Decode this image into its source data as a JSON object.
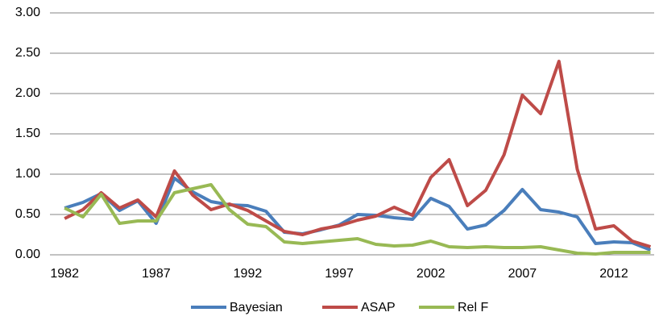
{
  "chart_data": {
    "type": "line",
    "x": [
      1982,
      1983,
      1984,
      1985,
      1986,
      1987,
      1988,
      1989,
      1990,
      1991,
      1992,
      1993,
      1994,
      1995,
      1996,
      1997,
      1998,
      1999,
      2000,
      2001,
      2002,
      2003,
      2004,
      2005,
      2006,
      2007,
      2008,
      2009,
      2010,
      2011,
      2012,
      2013,
      2014
    ],
    "series": [
      {
        "name": "Bayesian",
        "color": "#4a7ebb",
        "values": [
          0.58,
          0.65,
          0.76,
          0.55,
          0.67,
          0.39,
          0.95,
          0.78,
          0.66,
          0.62,
          0.61,
          0.54,
          0.28,
          0.26,
          0.31,
          0.37,
          0.5,
          0.49,
          0.46,
          0.44,
          0.7,
          0.6,
          0.32,
          0.37,
          0.55,
          0.81,
          0.56,
          0.53,
          0.47,
          0.14,
          0.16,
          0.15,
          0.06
        ]
      },
      {
        "name": "ASAP",
        "color": "#be4b48",
        "values": [
          0.45,
          0.56,
          0.77,
          0.58,
          0.68,
          0.47,
          1.04,
          0.74,
          0.56,
          0.63,
          0.55,
          0.42,
          0.29,
          0.25,
          0.32,
          0.36,
          0.43,
          0.48,
          0.59,
          0.49,
          0.96,
          1.18,
          0.61,
          0.8,
          1.24,
          1.98,
          1.75,
          2.4,
          1.06,
          0.32,
          0.36,
          0.17,
          0.1
        ]
      },
      {
        "name": "Rel F",
        "color": "#98b954",
        "values": [
          0.58,
          0.47,
          0.75,
          0.39,
          0.42,
          0.42,
          0.77,
          0.82,
          0.87,
          0.56,
          0.38,
          0.35,
          0.16,
          0.14,
          0.16,
          0.18,
          0.2,
          0.13,
          0.11,
          0.12,
          0.17,
          0.1,
          0.09,
          0.1,
          0.09,
          0.09,
          0.1,
          0.06,
          0.02,
          0.01,
          0.03,
          0.03,
          0.03
        ]
      }
    ],
    "xlim": [
      1981.2,
      2014.2
    ],
    "xticks": [
      1982,
      1987,
      1992,
      1997,
      2002,
      2007,
      2012
    ],
    "ylim": [
      0,
      3
    ],
    "yticks": [
      {
        "value": 0,
        "label": "0.00"
      },
      {
        "value": 0.5,
        "label": "0.50"
      },
      {
        "value": 1,
        "label": "1.00"
      },
      {
        "value": 1.5,
        "label": "1.50"
      },
      {
        "value": 2,
        "label": "2.00"
      },
      {
        "value": 2.5,
        "label": "2.50"
      },
      {
        "value": 3,
        "label": "3.00"
      }
    ],
    "grid": true,
    "legend": "bottom"
  }
}
